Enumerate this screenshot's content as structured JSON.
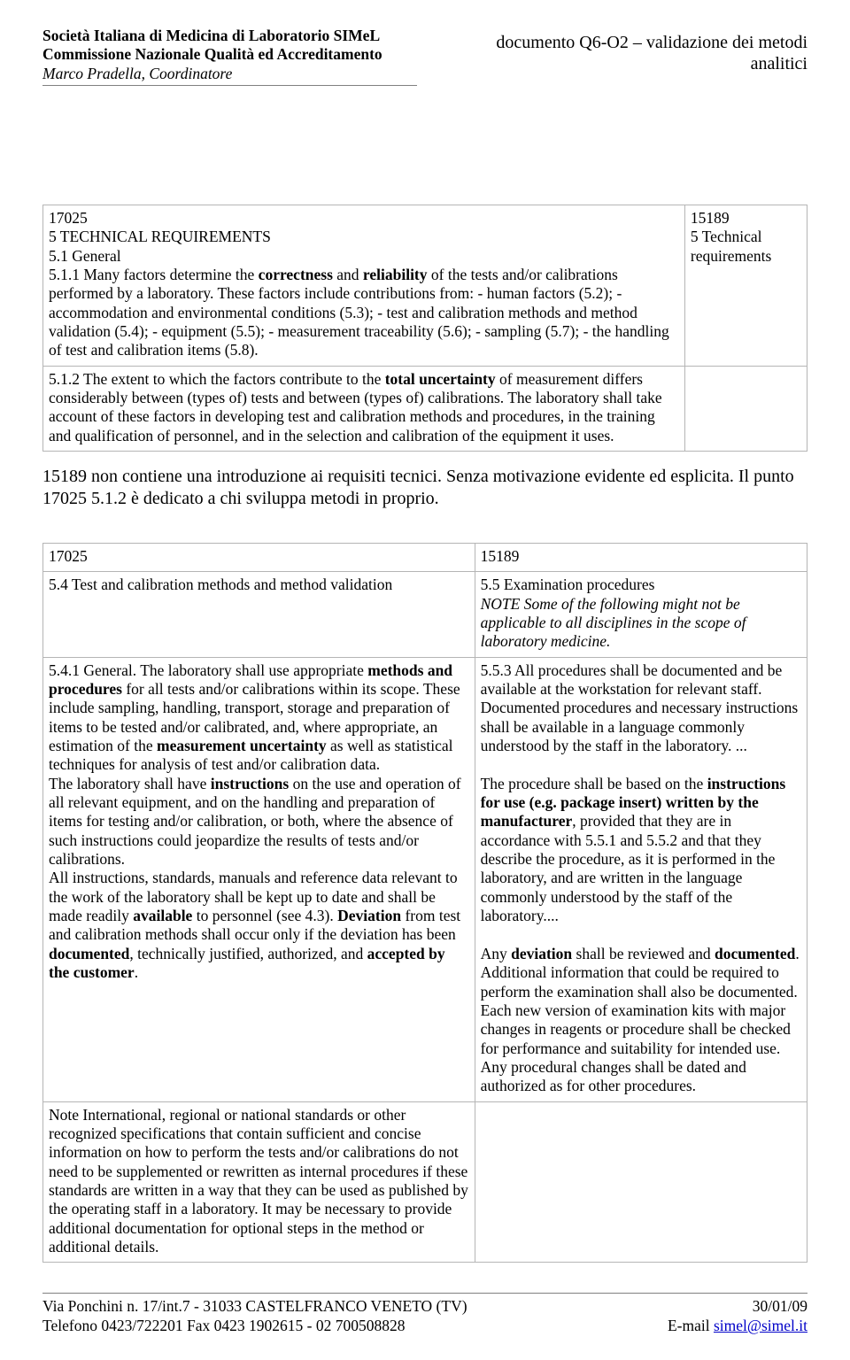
{
  "header": {
    "left": {
      "line1": "Società Italiana di Medicina di Laboratorio SIMeL",
      "line2": "Commissione Nazionale Qualità ed Accreditamento",
      "line3": "Marco Pradella, Coordinatore"
    },
    "right": {
      "line1": "documento Q6-O2 – validazione dei metodi",
      "line2": "analitici"
    }
  },
  "table1": {
    "rows": [
      {
        "colA_parts": [
          {
            "t": "17025",
            "b": false
          },
          {
            "t": "",
            "br": true
          },
          {
            "t": "5 TECHNICAL REQUIREMENTS",
            "b": false
          },
          {
            "t": "",
            "br": true
          },
          {
            "t": "5.1 General",
            "b": false
          },
          {
            "t": "",
            "br": true
          },
          {
            "t": "5.1.1 Many factors determine the ",
            "b": false
          },
          {
            "t": "correctness",
            "b": true
          },
          {
            "t": " and ",
            "b": false
          },
          {
            "t": "reliability",
            "b": true
          },
          {
            "t": " of the tests and/or calibrations performed by a laboratory. These factors include contributions from: - human factors (5.2); - accommodation and environmental conditions (5.3); - test and calibration methods and method validation (5.4); - equipment (5.5); - measurement traceability (5.6); - sampling (5.7); - the handling of test and calibration items (5.8).",
            "b": false
          }
        ],
        "colB_parts": [
          {
            "t": "15189",
            "b": false
          },
          {
            "t": "",
            "br": true
          },
          {
            "t": "5 Technical requirements",
            "b": false
          }
        ]
      },
      {
        "colA_parts": [
          {
            "t": "5.1.2 The extent to which the factors contribute to the ",
            "b": false
          },
          {
            "t": "total uncertainty",
            "b": true
          },
          {
            "t": " of measurement differs considerably between (types of) tests and between (types of) calibrations. The laboratory shall take account of these factors in developing test and calibration methods and procedures, in the training and qualification of personnel, and in the selection and calibration of the equipment it uses.",
            "b": false
          }
        ],
        "colB_parts": []
      }
    ]
  },
  "paragraph": "15189 non contiene una introduzione ai requisiti tecnici. Senza motivazione evidente ed esplicita. Il punto 17025 5.1.2 è dedicato a chi sviluppa metodi in proprio.",
  "table2": {
    "rows": [
      {
        "a": [
          {
            "t": "17025"
          }
        ],
        "b": [
          {
            "t": "15189"
          }
        ]
      },
      {
        "a": [
          {
            "t": "5.4 Test and calibration methods and method validation"
          }
        ],
        "b": [
          {
            "t": "5.5 Examination procedures"
          },
          {
            "br": true
          },
          {
            "t": "NOTE Some of the following might not be applicable to all disciplines in the scope of laboratory medicine.",
            "i": true
          }
        ]
      },
      {
        "a": [
          {
            "t": "5.4.1 General. The laboratory shall use appropriate "
          },
          {
            "t": "methods and procedures",
            "b": true
          },
          {
            "t": " for all tests and/or calibrations within its scope. These include sampling, handling, transport, storage and preparation of items to be tested and/or calibrated, and, where appropriate, an estimation of the "
          },
          {
            "t": "measurement uncertainty",
            "b": true
          },
          {
            "t": " as well as statistical techniques for analysis of test and/or calibration data."
          },
          {
            "br": true
          },
          {
            "t": "The laboratory shall have "
          },
          {
            "t": "instructions",
            "b": true
          },
          {
            "t": " on the use and operation of all relevant equipment, and on the handling and preparation of items for testing and/or calibration, or both, where the absence of such instructions could jeopardize the results of tests and/or calibrations."
          },
          {
            "br": true
          },
          {
            "t": "All instructions, standards, manuals and reference data relevant to the work of the laboratory shall be kept up to date and shall be made readily "
          },
          {
            "t": "available",
            "b": true
          },
          {
            "t": " to personnel (see 4.3). "
          },
          {
            "t": "Deviation",
            "b": true
          },
          {
            "t": " from test and calibration methods shall occur only if the deviation has been "
          },
          {
            "t": "documented",
            "b": true
          },
          {
            "t": ", technically justified, authorized, and "
          },
          {
            "t": "accepted by the customer",
            "b": true
          },
          {
            "t": "."
          }
        ],
        "b": [
          {
            "t": "5.5.3 All procedures shall be documented and be available at the workstation for relevant staff. Documented procedures and necessary instructions shall be available in a language commonly understood by the staff in the laboratory. ..."
          },
          {
            "br": true
          },
          {
            "br": true
          },
          {
            "t": "The procedure shall be based on the "
          },
          {
            "t": "instructions for use (e.g. package insert) written by the manufacturer",
            "b": true
          },
          {
            "t": ", provided that they are in accordance with 5.5.1 and 5.5.2 and that they describe the procedure, as it is performed in the laboratory, and are written in the language commonly understood by the staff of the laboratory...."
          },
          {
            "br": true
          },
          {
            "br": true
          },
          {
            "t": "Any "
          },
          {
            "t": "deviation",
            "b": true
          },
          {
            "t": " shall be reviewed and "
          },
          {
            "t": "documented",
            "b": true
          },
          {
            "t": ". Additional information that could be required to perform the examination shall also be documented. Each new version of examination kits with major changes in reagents or procedure shall be checked for performance and suitability for intended use. Any procedural changes shall be dated and authorized as for other procedures."
          }
        ]
      },
      {
        "a": [
          {
            "t": "Note International, regional or national standards or other recognized specifications that contain sufficient and concise information on how to perform the tests and/or calibrations do not need to be supplemented or rewritten as internal procedures if these standards are written in a way that they can be used as published by the operating staff in a laboratory. It may be necessary to provide additional documentation for optional steps in the method or additional details."
          }
        ],
        "b": []
      }
    ]
  },
  "footer": {
    "left": {
      "line1": "Via Ponchini n. 17/int.7 - 31033 CASTELFRANCO VENETO (TV)",
      "line2": "Telefono 0423/722201 Fax 0423 1902615 - 02 700508828"
    },
    "right": {
      "line1": "30/01/09",
      "line2_prefix": "E-mail  ",
      "line2_link": "simel@simel.it"
    }
  }
}
